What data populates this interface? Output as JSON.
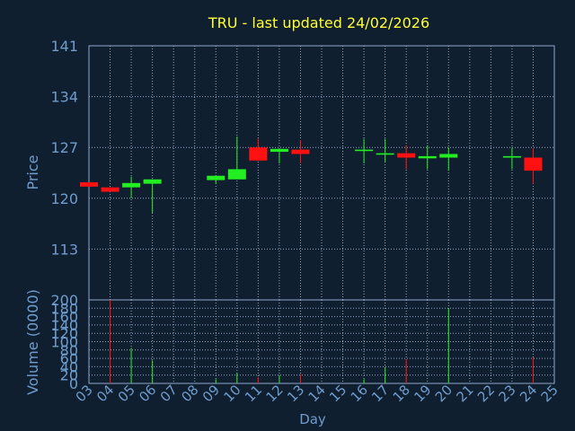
{
  "chart_data": {
    "type": "candlestick",
    "title": "TRU - last updated 24/02/2026",
    "price_axis": {
      "label": "Price",
      "ticks": [
        113,
        120,
        127,
        134,
        141
      ],
      "range": [
        106,
        141
      ]
    },
    "volume_axis": {
      "label": "Volume (0000)",
      "ticks": [
        0,
        20,
        40,
        60,
        80,
        100,
        120,
        140,
        160,
        180,
        200
      ],
      "range": [
        0,
        200
      ]
    },
    "x_axis": {
      "label": "Day",
      "ticks": [
        "03",
        "04",
        "05",
        "06",
        "07",
        "08",
        "09",
        "10",
        "11",
        "12",
        "13",
        "14",
        "15",
        "16",
        "17",
        "18",
        "19",
        "20",
        "21",
        "22",
        "23",
        "24",
        "25"
      ]
    },
    "grid": true,
    "candles": [
      {
        "day": 3.0,
        "open": 122.2,
        "close": 121.6,
        "high": 122.2,
        "low": 121.6,
        "volume": 0
      },
      {
        "day": 4.0,
        "open": 121.5,
        "close": 120.9,
        "high": 121.5,
        "low": 120.9,
        "volume": 200
      },
      {
        "day": 5.0,
        "open": 121.5,
        "close": 122.1,
        "high": 123.0,
        "low": 120.0,
        "volume": 85
      },
      {
        "day": 6.0,
        "open": 122.0,
        "close": 122.6,
        "high": 122.6,
        "low": 118.0,
        "volume": 55
      },
      {
        "day": 9.0,
        "open": 122.5,
        "close": 123.1,
        "high": 123.1,
        "low": 122.0,
        "volume": 10
      },
      {
        "day": 10.0,
        "open": 122.6,
        "close": 124.0,
        "high": 128.5,
        "low": 122.6,
        "volume": 25
      },
      {
        "day": 11.0,
        "open": 127.0,
        "close": 125.2,
        "high": 128.2,
        "low": 125.2,
        "volume": 15
      },
      {
        "day": 12.0,
        "open": 126.4,
        "close": 126.8,
        "high": 126.8,
        "low": 124.8,
        "volume": 20
      },
      {
        "day": 13.0,
        "open": 126.7,
        "close": 126.1,
        "high": 128.0,
        "low": 124.8,
        "volume": 22
      },
      {
        "day": 16.0,
        "open": 126.5,
        "close": 126.7,
        "high": 128.2,
        "low": 124.8,
        "volume": 10
      },
      {
        "day": 17.0,
        "open": 126.0,
        "close": 126.2,
        "high": 128.2,
        "low": 125.0,
        "volume": 38
      },
      {
        "day": 18.0,
        "open": 126.2,
        "close": 125.6,
        "high": 127.3,
        "low": 124.0,
        "volume": 58
      },
      {
        "day": 19.0,
        "open": 125.5,
        "close": 125.8,
        "high": 127.3,
        "low": 124.0,
        "volume": 0
      },
      {
        "day": 20.0,
        "open": 125.6,
        "close": 126.1,
        "high": 127.0,
        "low": 123.8,
        "volume": 180
      },
      {
        "day": 23.0,
        "open": 125.6,
        "close": 125.8,
        "high": 127.0,
        "low": 124.0,
        "volume": 0
      },
      {
        "day": 24.0,
        "open": 125.6,
        "close": 123.8,
        "high": 126.9,
        "low": 122.0,
        "volume": 62
      }
    ],
    "colors": {
      "background": "#0f1f30",
      "frame": "#8fa8c8",
      "grid": "#8fa8c8",
      "title": "#ffff33",
      "axis_text": "#6f9ccc",
      "up": "#22ee22",
      "down": "#ff1111"
    }
  }
}
